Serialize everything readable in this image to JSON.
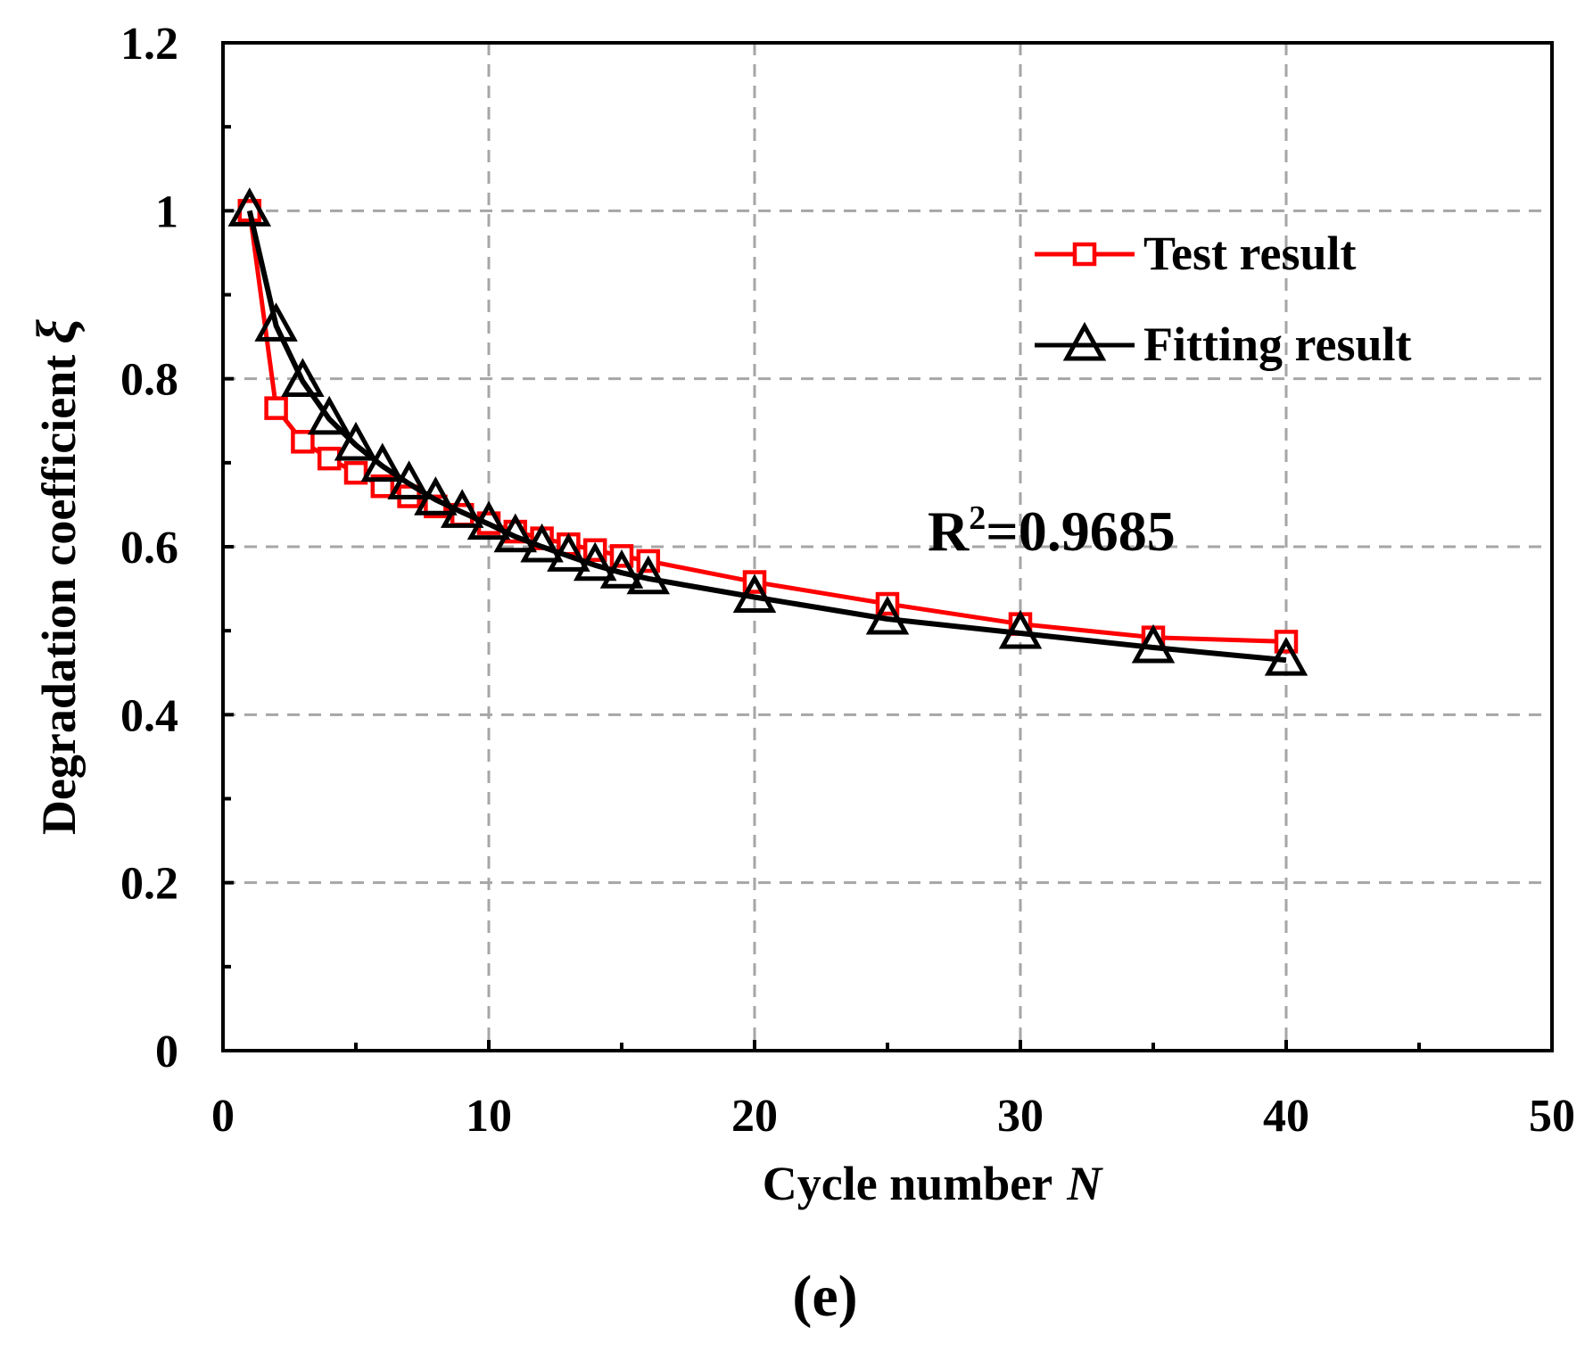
{
  "chart_data": {
    "type": "line",
    "xlabel": "Cycle number",
    "xlabel_var": "N",
    "ylabel": "Degradation coefficient",
    "ylabel_var": "ξ",
    "xlim": [
      0,
      50
    ],
    "ylim": [
      0,
      1.2
    ],
    "xticks": [
      0,
      10,
      20,
      30,
      40,
      50
    ],
    "yticks": [
      0,
      0.2,
      0.4,
      0.6,
      0.8,
      1,
      1.2
    ],
    "xtick_labels": [
      "0",
      "10",
      "20",
      "30",
      "40",
      "50"
    ],
    "ytick_labels": [
      "0",
      "0.2",
      "0.4",
      "0.6",
      "0.8",
      "1",
      "1.2"
    ],
    "grid": true,
    "legend_position": "top-right",
    "annotation": {
      "base": "R",
      "sup": "2",
      "rest": "=0.9685"
    },
    "caption": "(e)",
    "series": [
      {
        "name": "Test result",
        "color": "#ff0000",
        "marker": "square",
        "x": [
          1,
          2,
          3,
          4,
          5,
          6,
          7,
          8,
          9,
          10,
          11,
          12,
          13,
          14,
          15,
          16,
          20,
          25,
          30,
          35,
          40
        ],
        "y": [
          1.0,
          0.765,
          0.725,
          0.705,
          0.688,
          0.672,
          0.66,
          0.648,
          0.638,
          0.628,
          0.618,
          0.61,
          0.603,
          0.596,
          0.589,
          0.583,
          0.558,
          0.532,
          0.508,
          0.492,
          0.487
        ]
      },
      {
        "name": "Fitting result",
        "color": "#000000",
        "marker": "triangle",
        "x": [
          1,
          2,
          3,
          4,
          5,
          6,
          7,
          8,
          9,
          10,
          11,
          12,
          13,
          14,
          15,
          16,
          20,
          25,
          30,
          35,
          40
        ],
        "y": [
          1.0,
          0.863,
          0.797,
          0.752,
          0.721,
          0.696,
          0.675,
          0.656,
          0.641,
          0.627,
          0.612,
          0.6,
          0.589,
          0.578,
          0.569,
          0.562,
          0.54,
          0.514,
          0.497,
          0.48,
          0.465
        ]
      }
    ]
  }
}
